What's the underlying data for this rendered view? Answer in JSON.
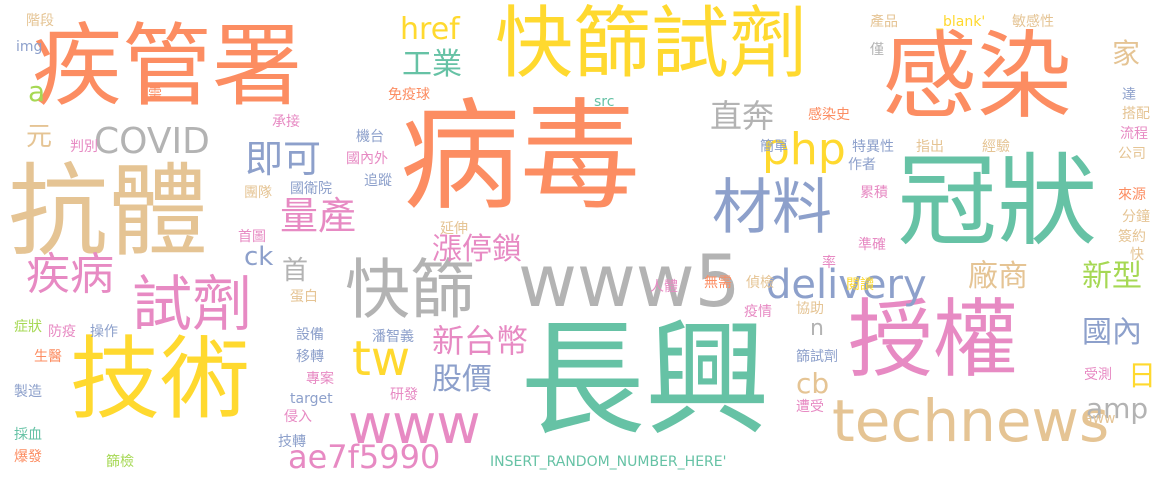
{
  "palette": {
    "teal": "#66c2a5",
    "orange": "#fc8d62",
    "blue": "#8da0cb",
    "pink": "#e78ac3",
    "lime": "#a6d854",
    "yellow": "#ffd92f",
    "tan": "#e5c494",
    "gray": "#b3b3b3"
  },
  "words": {
    "bingdu": "病毒",
    "changxing": "長興",
    "jiguanshu": "疾管署",
    "kuaishaishiji": "快篩試劑",
    "ganran": "感染",
    "kangti": "抗體",
    "guanzhuang": "冠狀",
    "jishu": "技術",
    "shouquan": "授權",
    "kuaishai": "快篩",
    "www5": "www5",
    "technews": "technews",
    "shiji": "試劑",
    "cailiao": "材料",
    "www": "www",
    "tw": "tw",
    "php": "php",
    "delivery": "delivery",
    "jibing": "疾病",
    "liangchan": "量產",
    "jike": "即可",
    "covid": "COVID",
    "zhiben": "直奔",
    "gongye": "工業",
    "href": "href",
    "ae7f5990": "ae7f5990",
    "xintaibi": "新台幣",
    "guojia": "股價",
    "zhangtingsuo": "漲停鎖",
    "changshang": "廠商",
    "xinxing": "新型",
    "guonei": "國內",
    "amp": "amp",
    "ri": "日",
    "cb": "cb",
    "ck": "ck",
    "shou": "首",
    "jia": "家",
    "a": "a",
    "yuan": "元",
    "n": "n",
    "jieduan": "階段",
    "img": "img",
    "xu": "需",
    "panbie": "判別",
    "chengjie": "承接",
    "mianyiqiu": "免疫球",
    "jitai": "機台",
    "guoneiwai": "國內外",
    "zhuizong": "追蹤",
    "guoweiyuan": "國衛院",
    "tuandui": "團隊",
    "shoutu": "首圖",
    "yanshen": "延伸",
    "renti": "人體",
    "wuxu": "無需",
    "zhenjian": "偵檢",
    "danbai": "蛋白",
    "zhengzhuang": "症狀",
    "fangyi": "防疫",
    "caozuo": "操作",
    "shengyi": "生醫",
    "shebei": "設備",
    "panzhiyi": "潘智義",
    "yizhuan": "移轉",
    "zhuanan": "專案",
    "target": "target",
    "yanfa": "研發",
    "qinru": "侵入",
    "jizhuan": "技轉",
    "zhizao": "製造",
    "caixue": "採血",
    "baofa": "爆發",
    "shaijian": "篩檢",
    "insert": "INSERT_RANDOM_NUMBER_HERE'",
    "src": "src",
    "chanpin": "產品",
    "blank": "_blank'",
    "minganxing": "敏感性",
    "jin": "僅",
    "da": "達",
    "dapei": "搭配",
    "liucheng": "流程",
    "gongsi": "公司",
    "ganranshi": "感染史",
    "jiandan": "簡單",
    "teyixing": "特異性",
    "zuozhe": "作者",
    "zhichu": "指出",
    "jingyan": "經驗",
    "leiji": "累積",
    "laiyuan": "來源",
    "fenzhong": "分鐘",
    "qianyue": "簽約",
    "kuai": "快",
    "zhunque": "準確",
    "lv": "率",
    "yuedu": "閱讀",
    "yiqing": "疫情",
    "xiezhu": "協助",
    "shaishiji": "篩試劑",
    "shouce": "受測",
    "aww": "aww",
    "zaoshou": "遭受"
  }
}
